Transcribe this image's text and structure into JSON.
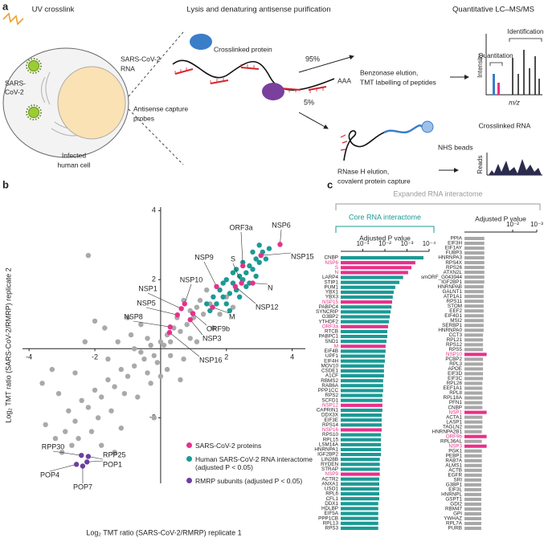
{
  "figure": {
    "panel_a": {
      "label": "a",
      "uv_crosslink": "UV crosslink",
      "lysis_title": "Lysis and denaturing antisense purification",
      "lcms_title": "Quantitative LC–MS/MS",
      "virus": [
        "SARS-",
        "CoV-2"
      ],
      "cell": [
        "Infected",
        "human cell"
      ],
      "rna": [
        "SARS-CoV-2",
        "RNA"
      ],
      "crosslinked_protein": "Crosslinked protein",
      "polya": "AAA",
      "probes": [
        "Antisense capture",
        "probes"
      ],
      "pct_high": "95%",
      "pct_low": "5%",
      "benzonase": [
        "Benzonase elution,",
        "TMT labelling of peptides"
      ],
      "intensity": "Intensity",
      "quantitation": "Quantitation",
      "identification": "Identification",
      "mz": "m/z",
      "nhs": "NHS beads",
      "rnase": [
        "RNase H elution,",
        "covalent protein capture"
      ],
      "crosslinked_rna": "Crosslinked RNA",
      "reads": "Reads"
    },
    "panel_b": {
      "label": "b"
    },
    "panel_c": {
      "label": "c",
      "expanded_title": "Expanded RNA interactome",
      "core_title": "Core RNA interactome"
    }
  },
  "chart_data": [
    {
      "type": "scatter",
      "xlabel": "Log₂ TMT ratio (SARS-CoV-2/RMRP) replicate 1",
      "ylabel": "Log₂ TMT ratio (SARS-CoV-2/RMRP) replicate 2",
      "xlim": [
        -4.2,
        4.4
      ],
      "ylim": [
        -3.9,
        4.1
      ],
      "xticks": [
        -4,
        -2,
        2,
        4
      ],
      "yticks": [
        -2,
        2,
        4
      ],
      "legend": "lower right",
      "series": [
        {
          "color": "#a9a9a9",
          "x": [
            -0.5,
            -0.3,
            -0.2,
            0,
            0.1,
            0.2,
            -0.1,
            -0.6,
            -0.8,
            -0.4,
            0.3,
            0.4,
            0.6,
            0.5,
            0.8,
            1.0,
            1.1,
            0.9,
            1.3,
            1.2,
            1.5,
            -1.0,
            -1.2,
            -1.4,
            -1.1,
            -1.6,
            -1.8,
            -2.0,
            -2.2,
            -1.9,
            -2.4,
            -2.6,
            -2.8,
            -3.1,
            -3.3,
            -2.9,
            -2.5,
            -2.1,
            -3.0,
            -2.7,
            -1.5,
            -0.9,
            -1.3,
            -1.7,
            -2.3,
            -2.0,
            -1.0,
            -0.6,
            0.2,
            0.7,
            1.1,
            0.6,
            -0.3,
            -0.7,
            -1.2,
            -0.2,
            1.6,
            1.8,
            2.0,
            -2.2,
            -3.5,
            -1.4,
            0.0,
            -0.4,
            0.9,
            -1.6,
            -2.6,
            -3.6,
            -0.8,
            0.3,
            1.4,
            0.7,
            -1.8,
            -3.2,
            2.2
          ],
          "y": [
            -0.3,
            0.1,
            -0.2,
            0.2,
            0.1,
            0.4,
            -0.4,
            -0.1,
            -0.5,
            0.3,
            0.2,
            0.6,
            0.5,
            0.9,
            0.7,
            0.9,
            1.2,
            1.1,
            1.0,
            1.4,
            1.3,
            -0.8,
            -0.6,
            -1.1,
            -1.3,
            -0.9,
            -1.4,
            -1.2,
            -1.7,
            -2.0,
            -1.5,
            -2.1,
            -1.8,
            -1.3,
            -0.6,
            -2.4,
            -2.6,
            -2.4,
            -3.0,
            -2.8,
            -1.8,
            0.4,
            0.2,
            0.6,
            0.2,
            0.8,
            0.9,
            0.7,
            -0.6,
            -0.3,
            0.2,
            -0.9,
            -1.0,
            -1.4,
            -2.3,
            -2.0,
            0.6,
            1.0,
            1.5,
            2.7,
            -2.2,
            -3.0,
            -0.8,
            -0.7,
            0.3,
            -0.3,
            -0.7,
            -1.0,
            0.0,
            -0.2,
            1.7,
            1.4,
            -2.8,
            -2.6,
            1.2
          ]
        },
        {
          "name": "SARS-CoV-2 proteins",
          "color": "#e8308a",
          "labels": [
            "NSP6",
            "NSP15",
            "ORF3a",
            "S",
            "N",
            "NSP9",
            "NSP12",
            "M",
            "NSP10",
            "NSP1",
            "ORF9b",
            "NSP5",
            "NSP3",
            "NSP8",
            "NSP16"
          ],
          "x": [
            3.63,
            3.05,
            2.5,
            2.46,
            2.8,
            1.7,
            2.27,
            1.58,
            0.73,
            0.63,
            0.98,
            0.51,
            0.9,
            0.29,
            0.27
          ],
          "y": [
            3.02,
            2.7,
            2.4,
            1.9,
            1.9,
            1.8,
            1.8,
            1.2,
            1.3,
            1.16,
            1.02,
            0.98,
            0.84,
            0.63,
            0.47
          ]
        },
        {
          "name": "Human SARS-CoV-2 RNA interactome (adjusted P < 0.05)",
          "color": "#1b9a95",
          "x": [
            1.5,
            1.7,
            1.9,
            2.0,
            2.1,
            2.2,
            2.3,
            2.4,
            2.5,
            2.6,
            2.7,
            2.8,
            2.9,
            3.0,
            3.1,
            3.2,
            1.8,
            2.0,
            2.3,
            2.6,
            2.9,
            3.3,
            1.6,
            2.4,
            2.8,
            3.0,
            2.1,
            1.4,
            2.5,
            2.7,
            1.9,
            2.2
          ],
          "y": [
            1.1,
            1.3,
            1.5,
            1.3,
            1.6,
            1.9,
            1.7,
            2.1,
            2.0,
            2.2,
            2.4,
            2.3,
            2.6,
            2.5,
            2.8,
            2.6,
            1.7,
            2.0,
            2.3,
            1.8,
            2.1,
            2.9,
            1.5,
            1.5,
            2.8,
            3.0,
            1.1,
            1.3,
            2.5,
            1.9,
            1.9,
            2.2
          ]
        },
        {
          "name": "RMRP subunits (adjusted P < 0.05)",
          "color": "#6b3fa0",
          "labels": [
            "RPP30",
            "RPP25",
            "POP1",
            "POP4",
            "POP7"
          ],
          "x": [
            -2.41,
            -2.2,
            -2.24,
            -2.56,
            -2.37
          ],
          "y": [
            -3.09,
            -3.12,
            -3.28,
            -3.35,
            -3.4
          ]
        }
      ]
    },
    {
      "type": "bar",
      "orientation": "horizontal",
      "xscale": "log",
      "xlabel": "Adjusted P value",
      "xlim": [
        1,
        0.0001
      ],
      "xticks": [
        {
          "value": 0.1,
          "label": "10⁻¹"
        },
        {
          "value": 0.01,
          "label": "10⁻²"
        },
        {
          "value": 0.001,
          "label": "10⁻³"
        },
        {
          "value": 0.0001,
          "label": "10⁻⁴"
        }
      ],
      "categories": [
        "CNBP",
        "NSP6",
        "S",
        "N",
        "LARP4",
        "STIP1",
        "PUM1",
        "YBX1",
        "YBX3",
        "NSP15",
        "PABPC4",
        "SYNCRIP",
        "G3BP2",
        "YTHDF2",
        "ORF3a",
        "RTCB",
        "PABPC1",
        "SND1",
        "M",
        "EIF4B",
        "UPF1",
        "EIF4H",
        "MOV10",
        "CSDE1",
        "A1CF",
        "RBMS2",
        "RAB6A",
        "PPP1CC",
        "RPS2",
        "SCFD1",
        "NSP12",
        "CAPRIN1",
        "DDX3X",
        "EIF3E",
        "RPS14",
        "NSP16",
        "RPS10",
        "RPL15",
        "LSM14A",
        "HNRNPA1",
        "IGF2BP2",
        "LIN28B",
        "RYDEN",
        "STRAP",
        "NSP9",
        "ACTR2",
        "ANXA1",
        "USO1",
        "RPL6",
        "CFL1",
        "DDX1",
        "HDLBP",
        "EIF5A",
        "PPP1CB",
        "RPL13",
        "RPS3"
      ],
      "values": [
        0.00018,
        0.00042,
        0.00063,
        0.00089,
        0.0015,
        0.0022,
        0.0034,
        0.004,
        0.0044,
        0.0047,
        0.005,
        0.0055,
        0.006,
        0.0066,
        0.0072,
        0.0078,
        0.0078,
        0.0085,
        0.0093,
        0.0093,
        0.01,
        0.01,
        0.011,
        0.011,
        0.011,
        0.012,
        0.012,
        0.012,
        0.013,
        0.013,
        0.013,
        0.013,
        0.014,
        0.014,
        0.014,
        0.014,
        0.015,
        0.015,
        0.015,
        0.015,
        0.015,
        0.017,
        0.017,
        0.017,
        0.017,
        0.018,
        0.018,
        0.018,
        0.018,
        0.018,
        0.02,
        0.02,
        0.02,
        0.02,
        0.02,
        0.02
      ],
      "colors": [
        "#1b9a95",
        "#e8308a",
        "#e8308a",
        "#e8308a",
        "#1b9a95",
        "#1b9a95",
        "#1b9a95",
        "#1b9a95",
        "#1b9a95",
        "#e8308a",
        "#1b9a95",
        "#1b9a95",
        "#1b9a95",
        "#1b9a95",
        "#e8308a",
        "#1b9a95",
        "#1b9a95",
        "#1b9a95",
        "#e8308a",
        "#1b9a95",
        "#1b9a95",
        "#1b9a95",
        "#1b9a95",
        "#1b9a95",
        "#1b9a95",
        "#1b9a95",
        "#1b9a95",
        "#1b9a95",
        "#1b9a95",
        "#1b9a95",
        "#e8308a",
        "#1b9a95",
        "#1b9a95",
        "#1b9a95",
        "#1b9a95",
        "#e8308a",
        "#1b9a95",
        "#1b9a95",
        "#1b9a95",
        "#1b9a95",
        "#1b9a95",
        "#1b9a95",
        "#1b9a95",
        "#1b9a95",
        "#e8308a",
        "#1b9a95",
        "#1b9a95",
        "#1b9a95",
        "#1b9a95",
        "#1b9a95",
        "#1b9a95",
        "#1b9a95",
        "#1b9a95",
        "#1b9a95",
        "#1b9a95",
        "#1b9a95"
      ]
    },
    {
      "type": "bar",
      "orientation": "horizontal",
      "xscale": "log",
      "xlabel": "Adjusted P value",
      "xlim": [
        1,
        0.001
      ],
      "xticks": [
        {
          "value": 0.01,
          "label": "10⁻²"
        },
        {
          "value": 0.001,
          "label": "10⁻³"
        }
      ],
      "categories": [
        "PPIA",
        "EIF3H",
        "EIF1AY",
        "FUBP3",
        "HNRNPA3",
        "RPS4X",
        "RPS26",
        "ATXN2L",
        "smORF_G043944",
        "IGF2BP1",
        "HNRNPAB",
        "GALNT1",
        "ATP1A1",
        "RPS11",
        "STOM",
        "EEF2",
        "EIF4G1",
        "MSI2",
        "SERBP1",
        "HNRNPA0",
        "CCT3",
        "RPL21",
        "RPS12",
        "RPS5",
        "NSP10",
        "PCBP2",
        "RPL3",
        "APOE",
        "EIF3D",
        "EIF3C",
        "RPL26",
        "EEF1A1",
        "RPL8",
        "RPL18A",
        "PFN1",
        "CNBP",
        "NSP1",
        "ACTA1",
        "LASP1",
        "TAGLN2",
        "HNRNPA2B1",
        "ORF9b",
        "RPL36AL",
        "NSP3",
        "PGK1",
        "PEBP1",
        "RAB7A",
        "ALMS1",
        "ACTB",
        "EGFR",
        "SRI",
        "G3BP1",
        "EIF3L",
        "HNRNPL",
        "GSPT1",
        "GDI2",
        "RBM47",
        "GPI",
        "YWHAZ",
        "RPL7A",
        "PURB"
      ],
      "values": [
        0.15,
        0.15,
        0.15,
        0.15,
        0.15,
        0.15,
        0.15,
        0.15,
        0.15,
        0.15,
        0.16,
        0.16,
        0.16,
        0.16,
        0.16,
        0.16,
        0.16,
        0.16,
        0.16,
        0.16,
        0.17,
        0.17,
        0.17,
        0.17,
        0.12,
        0.17,
        0.17,
        0.17,
        0.17,
        0.17,
        0.18,
        0.18,
        0.18,
        0.18,
        0.18,
        0.18,
        0.12,
        0.18,
        0.18,
        0.18,
        0.19,
        0.12,
        0.19,
        0.12,
        0.19,
        0.19,
        0.19,
        0.19,
        0.19,
        0.19,
        0.2,
        0.2,
        0.2,
        0.2,
        0.2,
        0.2,
        0.2,
        0.2,
        0.2,
        0.2,
        0.2
      ],
      "colors": [
        "#a8a8a8",
        "#a8a8a8",
        "#a8a8a8",
        "#a8a8a8",
        "#a8a8a8",
        "#a8a8a8",
        "#a8a8a8",
        "#a8a8a8",
        "#a8a8a8",
        "#a8a8a8",
        "#a8a8a8",
        "#a8a8a8",
        "#a8a8a8",
        "#a8a8a8",
        "#a8a8a8",
        "#a8a8a8",
        "#a8a8a8",
        "#a8a8a8",
        "#a8a8a8",
        "#a8a8a8",
        "#a8a8a8",
        "#a8a8a8",
        "#a8a8a8",
        "#a8a8a8",
        "#e8308a",
        "#a8a8a8",
        "#a8a8a8",
        "#a8a8a8",
        "#a8a8a8",
        "#a8a8a8",
        "#a8a8a8",
        "#a8a8a8",
        "#a8a8a8",
        "#a8a8a8",
        "#a8a8a8",
        "#a8a8a8",
        "#e8308a",
        "#a8a8a8",
        "#a8a8a8",
        "#a8a8a8",
        "#a8a8a8",
        "#e8308a",
        "#a8a8a8",
        "#e8308a",
        "#a8a8a8",
        "#a8a8a8",
        "#a8a8a8",
        "#a8a8a8",
        "#a8a8a8",
        "#a8a8a8",
        "#a8a8a8",
        "#a8a8a8",
        "#a8a8a8",
        "#a8a8a8",
        "#a8a8a8",
        "#a8a8a8",
        "#a8a8a8",
        "#a8a8a8",
        "#a8a8a8",
        "#a8a8a8",
        "#a8a8a8"
      ]
    }
  ]
}
